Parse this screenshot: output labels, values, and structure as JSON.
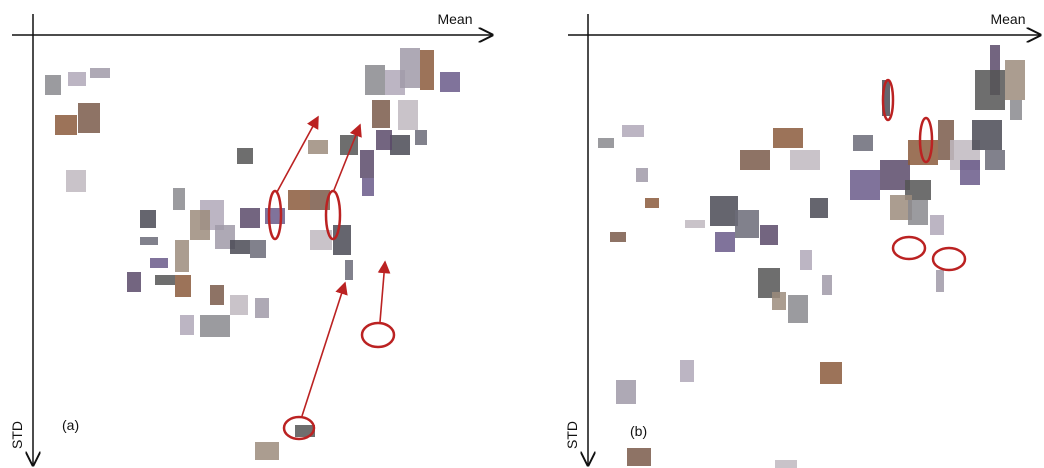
{
  "panels": [
    {
      "label": "(a)",
      "x_axis": "Mean",
      "y_axis": "STD"
    },
    {
      "label": "(b)",
      "x_axis": "Mean",
      "y_axis": "STD"
    }
  ]
}
